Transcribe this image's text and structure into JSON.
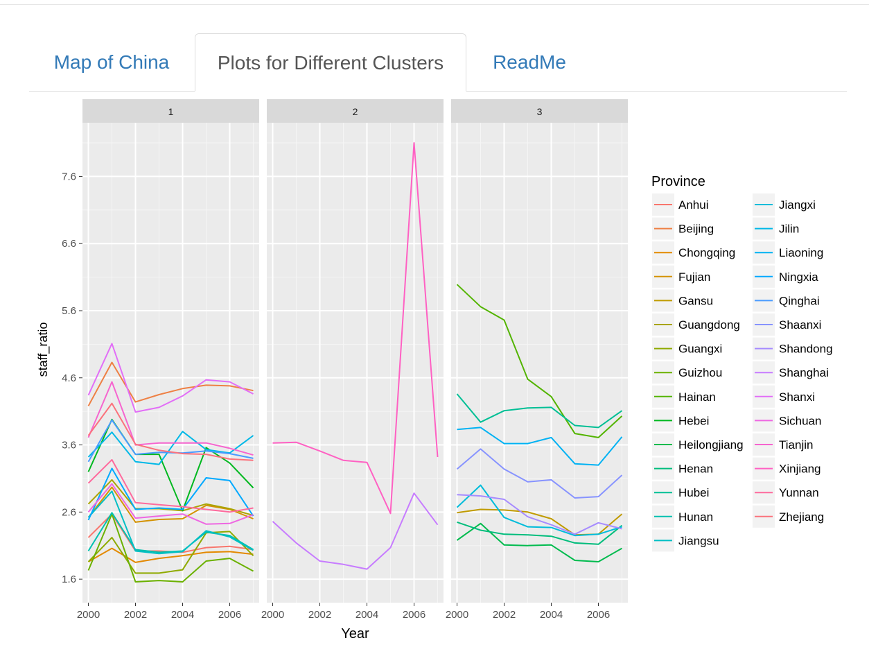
{
  "tabs": [
    {
      "label": "Map of China",
      "active": false
    },
    {
      "label": "Plots for Different Clusters",
      "active": true
    },
    {
      "label": "ReadMe",
      "active": false
    }
  ],
  "chart_data": {
    "type": "line",
    "facet_by": "cluster",
    "panels": [
      "1",
      "2",
      "3"
    ],
    "xlabel": "Year",
    "ylabel": "staff_ratio",
    "x": [
      2000,
      2001,
      2002,
      2003,
      2004,
      2005,
      2006,
      2007
    ],
    "xticks": [
      2000,
      2002,
      2004,
      2006
    ],
    "yticks": [
      1.6,
      2.6,
      3.6,
      4.6,
      5.6,
      6.6,
      7.6
    ],
    "xlim": [
      1999.75,
      2007.25
    ],
    "ylim": [
      1.25,
      8.4
    ],
    "legend_title": "Province",
    "legend_position": "right",
    "grid": true,
    "series": [
      {
        "name": "Anhui",
        "color": "#F8766D",
        "panel": "1",
        "values": [
          2.22,
          2.57,
          2.02,
          2.02,
          2.0,
          2.07,
          2.09,
          2.04
        ]
      },
      {
        "name": "Beijing",
        "color": "#EE8044",
        "panel": "1",
        "values": [
          4.18,
          4.83,
          4.24,
          4.35,
          4.44,
          4.49,
          4.48,
          4.41
        ]
      },
      {
        "name": "Chongqing",
        "color": "#E38900",
        "panel": "1",
        "values": [
          1.86,
          2.06,
          1.85,
          1.91,
          1.95,
          2.0,
          2.01,
          1.97
        ]
      },
      {
        "name": "Fujian",
        "color": "#D49200",
        "panel": "1",
        "values": [
          2.52,
          2.97,
          2.45,
          2.49,
          2.5,
          2.7,
          2.64,
          2.5
        ]
      },
      {
        "name": "Gansu",
        "color": "#C09B00",
        "panel": "3",
        "values": [
          2.59,
          2.64,
          2.63,
          2.6,
          2.5,
          2.26,
          2.27,
          2.57
        ]
      },
      {
        "name": "Guangdong",
        "color": "#A9A400",
        "panel": "1",
        "values": [
          2.72,
          3.08,
          2.65,
          2.65,
          2.62,
          2.72,
          2.65,
          2.55
        ]
      },
      {
        "name": "Guangxi",
        "color": "#8FAA00",
        "panel": "1",
        "values": [
          1.86,
          2.22,
          1.69,
          1.69,
          1.74,
          2.29,
          2.31,
          1.95
        ]
      },
      {
        "name": "Guizhou",
        "color": "#6BB100",
        "panel": "1",
        "values": [
          1.73,
          2.57,
          1.56,
          1.58,
          1.56,
          1.87,
          1.91,
          1.72
        ]
      },
      {
        "name": "Hainan",
        "color": "#53B400",
        "panel": "3",
        "values": [
          5.99,
          5.66,
          5.46,
          4.58,
          4.32,
          3.77,
          3.71,
          4.03
        ]
      },
      {
        "name": "Hebei",
        "color": "#00B81F",
        "panel": "1",
        "values": [
          3.2,
          3.98,
          3.46,
          3.46,
          2.62,
          3.56,
          3.33,
          2.96
        ]
      },
      {
        "name": "Heilongjiang",
        "color": "#00BB4E",
        "panel": "3",
        "values": [
          2.18,
          2.43,
          2.11,
          2.1,
          2.11,
          1.88,
          1.86,
          2.06
        ]
      },
      {
        "name": "Henan",
        "color": "#00BD7C",
        "panel": "3",
        "values": [
          2.45,
          2.33,
          2.27,
          2.26,
          2.24,
          2.14,
          2.12,
          2.4
        ]
      },
      {
        "name": "Hubei",
        "color": "#00BF95",
        "panel": "3",
        "values": [
          4.36,
          3.94,
          4.11,
          4.15,
          4.16,
          3.89,
          3.86,
          4.11
        ]
      },
      {
        "name": "Hunan",
        "color": "#00C0AF",
        "panel": "1",
        "values": [
          2.02,
          2.59,
          2.04,
          2.0,
          2.02,
          2.3,
          2.25,
          2.04
        ]
      },
      {
        "name": "Jiangsu",
        "color": "#00BFC4",
        "panel": "1",
        "values": [
          2.52,
          2.91,
          2.02,
          1.98,
          2.01,
          2.32,
          2.23,
          2.03
        ]
      },
      {
        "name": "Jiangxi",
        "color": "#00BCDA",
        "panel": "3",
        "values": [
          2.67,
          3.0,
          2.52,
          2.38,
          2.37,
          2.25,
          2.27,
          2.38
        ]
      },
      {
        "name": "Jilin",
        "color": "#00B8E7",
        "panel": "1",
        "values": [
          3.42,
          3.79,
          3.35,
          3.31,
          3.8,
          3.53,
          3.48,
          3.74
        ]
      },
      {
        "name": "Liaoning",
        "color": "#00B2F3",
        "panel": "3",
        "values": [
          3.83,
          3.86,
          3.62,
          3.62,
          3.71,
          3.32,
          3.3,
          3.72
        ]
      },
      {
        "name": "Ningxia",
        "color": "#00A9FF",
        "panel": "1",
        "values": [
          2.48,
          3.25,
          2.64,
          2.66,
          2.64,
          3.11,
          3.07,
          2.54
        ]
      },
      {
        "name": "Qinghai",
        "color": "#4A9BFF",
        "panel": "1",
        "values": [
          3.35,
          3.97,
          3.46,
          3.49,
          3.48,
          3.51,
          3.47,
          3.4
        ]
      },
      {
        "name": "Shaanxi",
        "color": "#8793FF",
        "panel": "3",
        "values": [
          3.24,
          3.54,
          3.24,
          3.05,
          3.08,
          2.81,
          2.83,
          3.15
        ]
      },
      {
        "name": "Shandong",
        "color": "#A68BFF",
        "panel": "3",
        "values": [
          2.86,
          2.84,
          2.79,
          2.53,
          2.41,
          2.27,
          2.44,
          2.35
        ]
      },
      {
        "name": "Shanghai",
        "color": "#C77CFF",
        "panel": "2",
        "values": [
          2.46,
          2.14,
          1.87,
          1.82,
          1.75,
          2.07,
          2.88,
          2.41
        ]
      },
      {
        "name": "Shanxi",
        "color": "#E26EF7",
        "panel": "1",
        "values": [
          4.34,
          5.11,
          4.09,
          4.16,
          4.33,
          4.57,
          4.54,
          4.36
        ]
      },
      {
        "name": "Sichuan",
        "color": "#EE68E2",
        "panel": "1",
        "values": [
          2.6,
          3.02,
          2.51,
          2.54,
          2.57,
          2.42,
          2.43,
          2.56
        ]
      },
      {
        "name": "Tianjin",
        "color": "#F665CF",
        "panel": "1",
        "values": [
          3.71,
          4.54,
          3.6,
          3.63,
          3.63,
          3.63,
          3.55,
          3.45
        ]
      },
      {
        "name": "Xinjiang",
        "color": "#FF61C3",
        "panel": "2",
        "values": [
          3.63,
          3.64,
          3.51,
          3.37,
          3.34,
          2.58,
          8.1,
          3.42
        ]
      },
      {
        "name": "Yunnan",
        "color": "#FE6A9D",
        "panel": "1",
        "values": [
          3.03,
          3.38,
          2.74,
          2.71,
          2.68,
          2.64,
          2.6,
          2.66
        ]
      },
      {
        "name": "Zhejiang",
        "color": "#FB727C",
        "panel": "1",
        "values": [
          3.74,
          4.22,
          3.61,
          3.52,
          3.47,
          3.46,
          3.39,
          3.37
        ]
      }
    ]
  }
}
